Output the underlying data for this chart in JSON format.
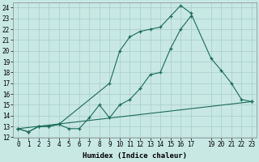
{
  "xlabel": "Humidex (Indice chaleur)",
  "bg_color": "#c8e8e4",
  "grid_color": "#a8ccc8",
  "line_color": "#1a6b58",
  "line1_x": [
    0,
    1,
    2,
    3,
    4,
    5,
    6,
    7,
    8,
    9,
    10,
    11,
    12,
    13,
    14,
    15,
    16,
    17
  ],
  "line1_y": [
    12.8,
    12.5,
    13.0,
    13.0,
    13.2,
    12.8,
    12.8,
    13.8,
    15.0,
    13.8,
    15.0,
    15.5,
    16.5,
    17.8,
    18.0,
    20.2,
    22.0,
    23.2
  ],
  "line2_x": [
    0,
    1,
    2,
    3,
    4,
    9,
    10,
    11,
    12,
    13,
    14,
    15,
    16,
    17,
    19,
    20,
    21,
    22,
    23
  ],
  "line2_y": [
    12.8,
    12.5,
    13.0,
    13.0,
    13.2,
    17.0,
    20.0,
    21.3,
    21.8,
    22.0,
    22.2,
    23.2,
    24.2,
    23.5,
    19.3,
    18.2,
    17.0,
    15.5,
    15.3
  ],
  "line3_x": [
    0,
    23
  ],
  "line3_y": [
    12.8,
    15.3
  ],
  "xlim": [
    -0.5,
    23.5
  ],
  "ylim": [
    12.0,
    24.5
  ],
  "xticks": [
    0,
    1,
    2,
    3,
    4,
    5,
    6,
    7,
    8,
    9,
    10,
    11,
    12,
    13,
    14,
    15,
    16,
    17,
    19,
    20,
    21,
    22,
    23
  ],
  "yticks": [
    12,
    13,
    14,
    15,
    16,
    17,
    18,
    19,
    20,
    21,
    22,
    23,
    24
  ],
  "tick_fontsize": 5.5,
  "label_fontsize": 6.5
}
